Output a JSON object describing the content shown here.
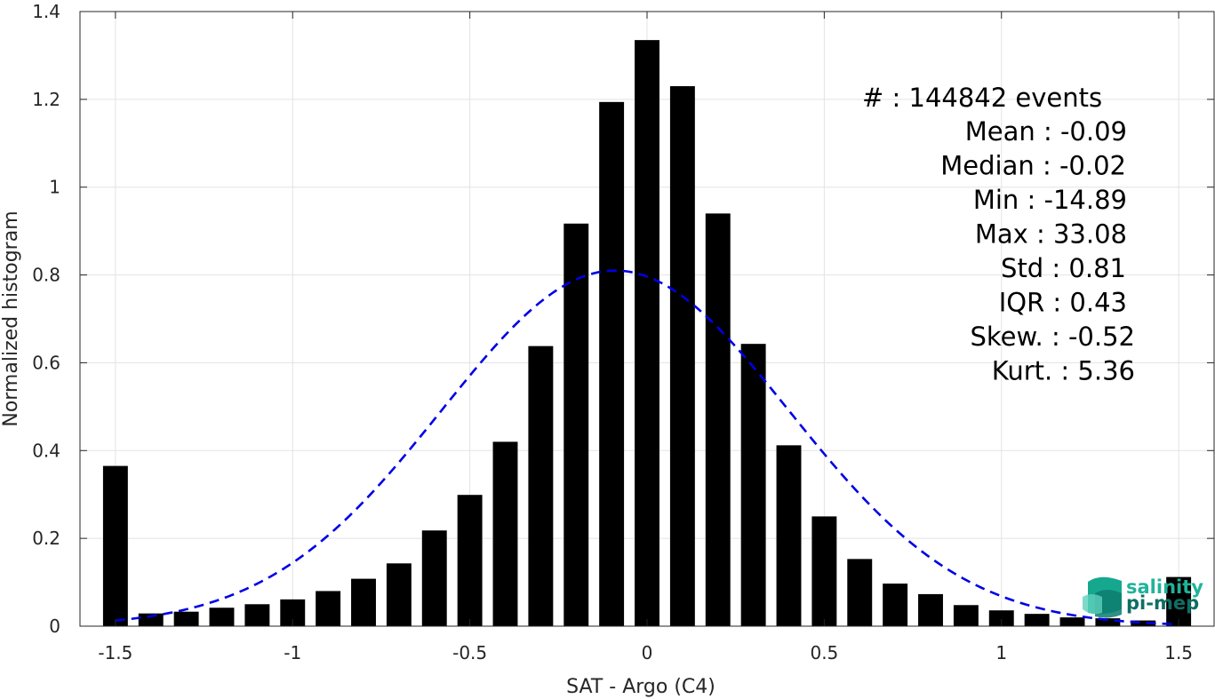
{
  "chart_data": {
    "type": "bar",
    "xlabel": "SAT - Argo (C4)",
    "ylabel": "Normalized histogram",
    "xlim": [
      -1.6,
      1.6
    ],
    "ylim": [
      0,
      1.4
    ],
    "xticks": [
      -1.5,
      -1,
      -0.5,
      0,
      0.5,
      1,
      1.5
    ],
    "xtick_labels": [
      "-1.5",
      "-1",
      "-0.5",
      "0",
      "0.5",
      "1",
      "1.5"
    ],
    "yticks": [
      0,
      0.2,
      0.4,
      0.6,
      0.8,
      1,
      1.2,
      1.4
    ],
    "ytick_labels": [
      "0",
      "0.2",
      "0.4",
      "0.6",
      "0.8",
      "1",
      "1.2",
      "1.4"
    ],
    "grid": true,
    "bar_width": 0.07,
    "bins": [
      {
        "x": -1.5,
        "value": 0.365
      },
      {
        "x": -1.4,
        "value": 0.029
      },
      {
        "x": -1.3,
        "value": 0.033
      },
      {
        "x": -1.2,
        "value": 0.042
      },
      {
        "x": -1.1,
        "value": 0.05
      },
      {
        "x": -1.0,
        "value": 0.061
      },
      {
        "x": -0.9,
        "value": 0.08
      },
      {
        "x": -0.8,
        "value": 0.108
      },
      {
        "x": -0.7,
        "value": 0.143
      },
      {
        "x": -0.6,
        "value": 0.218
      },
      {
        "x": -0.5,
        "value": 0.299
      },
      {
        "x": -0.4,
        "value": 0.42
      },
      {
        "x": -0.3,
        "value": 0.638
      },
      {
        "x": -0.2,
        "value": 0.917
      },
      {
        "x": -0.1,
        "value": 1.194
      },
      {
        "x": 0.0,
        "value": 1.335
      },
      {
        "x": 0.1,
        "value": 1.23
      },
      {
        "x": 0.2,
        "value": 0.94
      },
      {
        "x": 0.3,
        "value": 0.643
      },
      {
        "x": 0.4,
        "value": 0.412
      },
      {
        "x": 0.5,
        "value": 0.25
      },
      {
        "x": 0.6,
        "value": 0.153
      },
      {
        "x": 0.7,
        "value": 0.097
      },
      {
        "x": 0.8,
        "value": 0.073
      },
      {
        "x": 0.9,
        "value": 0.048
      },
      {
        "x": 1.0,
        "value": 0.036
      },
      {
        "x": 1.1,
        "value": 0.028
      },
      {
        "x": 1.2,
        "value": 0.02
      },
      {
        "x": 1.3,
        "value": 0.018
      },
      {
        "x": 1.4,
        "value": 0.013
      },
      {
        "x": 1.5,
        "value": 0.112
      }
    ],
    "fit": {
      "type": "gaussian",
      "mean": -0.09,
      "std": 0.49,
      "peak": 0.81,
      "x_range": [
        -1.5,
        1.5
      ],
      "style": "dashed",
      "color": "#0000e6"
    },
    "bar_color": "#000000",
    "stats": [
      "#  : 144842 events",
      "Mean : -0.09",
      "Median : -0.02",
      "Min : -14.89",
      "Max : 33.08",
      "Std : 0.81",
      "IQR : 0.43",
      "Skew. : -0.52",
      "Kurt. : 5.36"
    ]
  },
  "logo": {
    "line1": "salinity",
    "line2": "pi-mep",
    "color1": "#1fb39a",
    "color2": "#0f6e63"
  }
}
